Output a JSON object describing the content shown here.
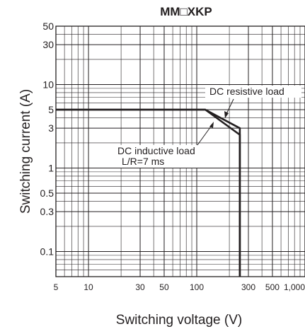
{
  "chart_data": {
    "type": "line",
    "title": "MM□XKP",
    "xlabel": "Switching voltage (V)",
    "ylabel": "Switching current (A)",
    "x_scale": "log",
    "y_scale": "log",
    "xlim": [
      5,
      1000
    ],
    "ylim": [
      0.05,
      50
    ],
    "grid": true,
    "x_ticks": [
      5,
      10,
      30,
      50,
      100,
      300,
      500,
      1000
    ],
    "x_tick_labels": [
      "5",
      "10",
      "30",
      "50",
      "100",
      "300",
      "500",
      "1,000"
    ],
    "y_ticks": [
      50,
      30,
      10,
      5,
      3,
      1,
      0.5,
      0.3,
      0.1
    ],
    "y_tick_labels": [
      "50",
      "30",
      "10",
      "5",
      "3",
      "1",
      "0.5",
      "0.3",
      "0.1"
    ],
    "series": [
      {
        "name": "DC resistive load",
        "x": [
          5,
          120,
          250,
          250
        ],
        "y": [
          5,
          5,
          3,
          0.05
        ]
      },
      {
        "name": "DC inductive load L/R=7 ms",
        "x": [
          5,
          120,
          250,
          250
        ],
        "y": [
          5,
          5,
          2.5,
          0.05
        ]
      }
    ],
    "annotations": [
      {
        "text": "DC resistive load"
      },
      {
        "text": "DC inductive load"
      },
      {
        "text": "L/R=7 ms"
      }
    ]
  }
}
